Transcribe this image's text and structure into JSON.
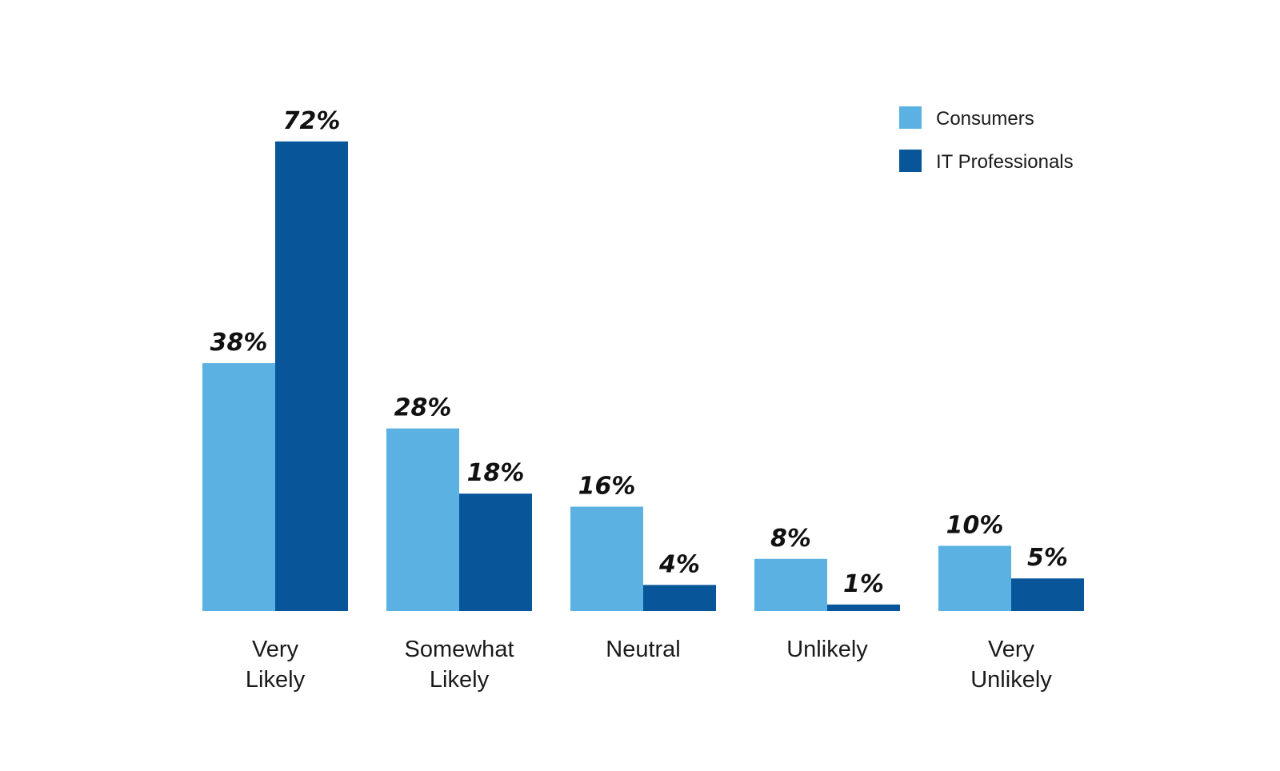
{
  "chart_data": {
    "type": "bar",
    "title": "",
    "xlabel": "",
    "ylabel": "",
    "ylim": [
      0,
      75
    ],
    "grid": false,
    "legend_position": "top-right",
    "value_suffix": "%",
    "categories": [
      [
        "Very",
        "Likely"
      ],
      [
        "Somewhat",
        "Likely"
      ],
      [
        "Neutral"
      ],
      [
        "Unlikely"
      ],
      [
        "Very",
        "Unlikely"
      ]
    ],
    "series": [
      {
        "name": "Consumers",
        "color": "#5ab1e2",
        "values": [
          38,
          28,
          16,
          8,
          10
        ]
      },
      {
        "name": "IT Professionals",
        "color": "#08559a",
        "values": [
          72,
          18,
          4,
          1,
          5
        ]
      }
    ]
  }
}
